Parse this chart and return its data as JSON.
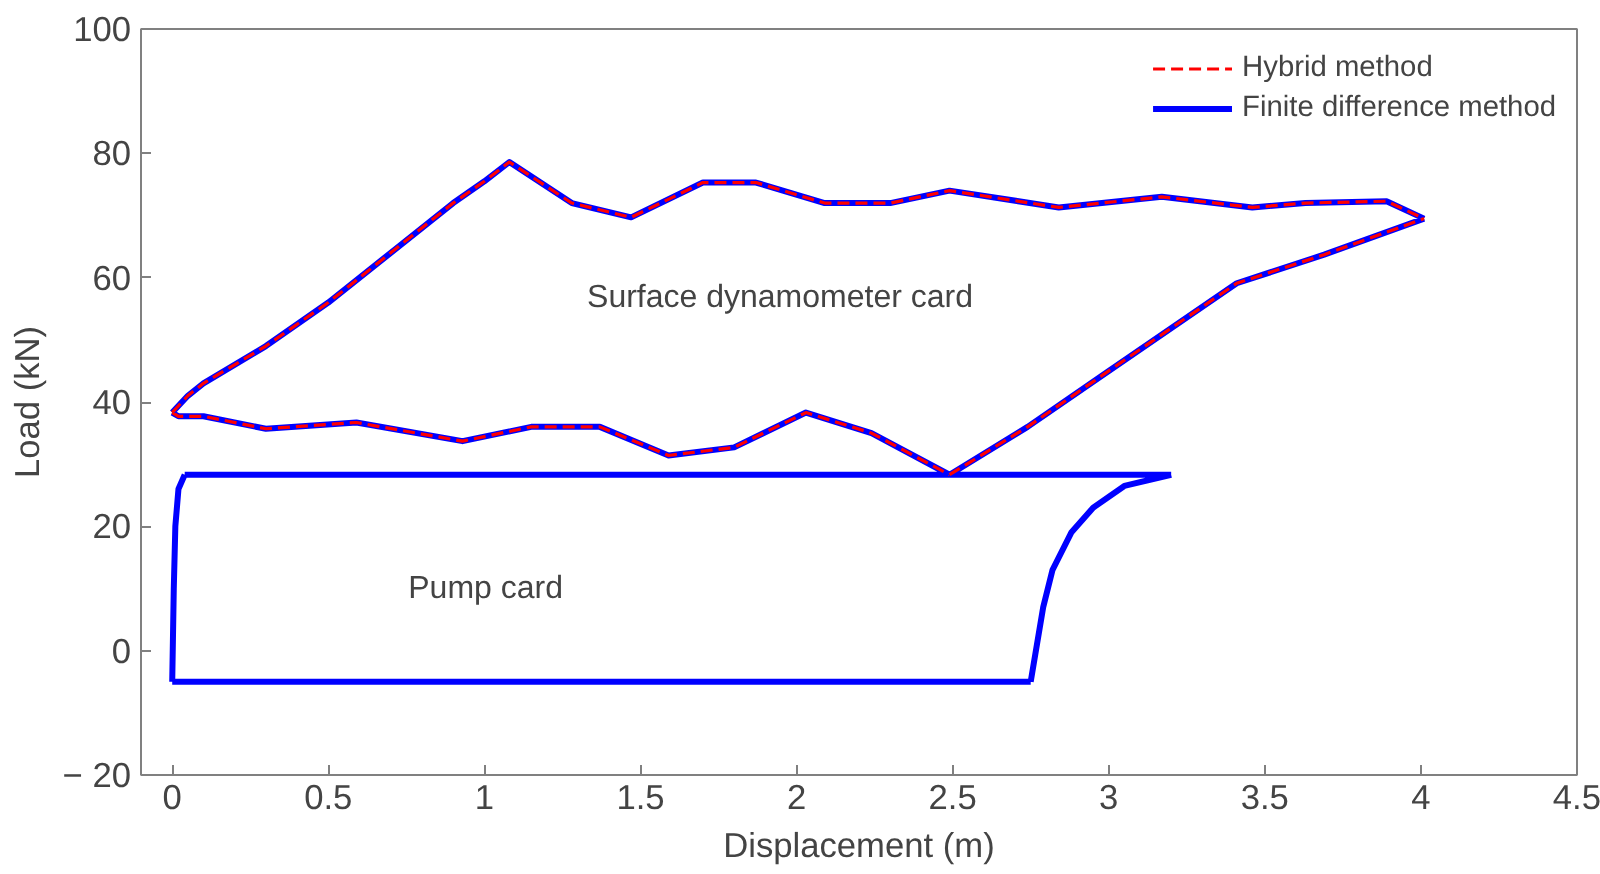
{
  "chart_data": {
    "type": "line",
    "xlabel": "Displacement (m)",
    "ylabel": "Load (kN)",
    "xlim": [
      -0.1,
      4.5
    ],
    "ylim": [
      -20,
      100
    ],
    "xticks": [
      0,
      0.5,
      1,
      1.5,
      2,
      2.5,
      3,
      3.5,
      4,
      4.5
    ],
    "yticks": [
      {
        "value": -20,
        "label": "− 20"
      },
      0,
      20,
      40,
      60,
      80,
      100
    ],
    "grid": false,
    "legend": "top right",
    "series": [
      {
        "name": "Hybrid method",
        "color": "#ff0000",
        "line_style": "dashed",
        "x": [
          0,
          0.05,
          0.1,
          0.3,
          0.5,
          0.7,
          0.9,
          1.0,
          1.08,
          1.28,
          1.47,
          1.7,
          1.87,
          2.09,
          2.3,
          2.49,
          2.84,
          3.17,
          3.46,
          3.63,
          3.89,
          4.01,
          null,
          2.49,
          2.74,
          3.0,
          3.41,
          3.69,
          4.01,
          null,
          0,
          0.02,
          0.1,
          0.3,
          0.59,
          0.93,
          1.15,
          1.37,
          1.59,
          1.8,
          2.03,
          2.24,
          2.49
        ],
        "values": [
          38.3,
          41,
          43,
          49,
          56,
          64,
          72,
          75.5,
          78.6,
          72,
          69.7,
          75.3,
          75.3,
          72,
          72,
          74,
          71.3,
          73,
          71.3,
          72,
          72.3,
          69.5,
          null,
          28.3,
          36,
          45,
          59.1,
          63.7,
          69.5,
          null,
          38.3,
          37.7,
          37.7,
          35.7,
          36.7,
          33.7,
          36,
          36,
          31.4,
          32.7,
          38.3,
          35,
          28.3
        ]
      },
      {
        "name": "Finite difference method",
        "color": "#0000ff",
        "line_style": "solid",
        "x": [
          0,
          0.05,
          0.1,
          0.3,
          0.5,
          0.7,
          0.9,
          1.0,
          1.08,
          1.28,
          1.47,
          1.7,
          1.87,
          2.09,
          2.3,
          2.49,
          2.84,
          3.17,
          3.46,
          3.63,
          3.89,
          4.01,
          null,
          2.49,
          2.74,
          3.0,
          3.41,
          3.69,
          4.01,
          null,
          0,
          0.02,
          0.1,
          0.3,
          0.59,
          0.93,
          1.15,
          1.37,
          1.59,
          1.8,
          2.03,
          2.24,
          2.49,
          null,
          0,
          0.005,
          0.01,
          0.02,
          0.04,
          null,
          0.04,
          3.2,
          null,
          2.75,
          2.77,
          2.79,
          2.82,
          2.88,
          2.95,
          3.05,
          3.2,
          null,
          0,
          2.75
        ],
        "values": [
          38.3,
          41,
          43,
          49,
          56,
          64,
          72,
          75.5,
          78.6,
          72,
          69.7,
          75.3,
          75.3,
          72,
          72,
          74,
          71.3,
          73,
          71.3,
          72,
          72.3,
          69.5,
          null,
          28.3,
          36,
          45,
          59.1,
          63.7,
          69.5,
          null,
          38.3,
          37.7,
          37.7,
          35.7,
          36.7,
          33.7,
          36,
          36,
          31.4,
          32.7,
          38.3,
          35,
          28.3,
          null,
          -5,
          10,
          20,
          26,
          28.3,
          null,
          28.3,
          28.3,
          null,
          -5,
          1,
          7,
          13,
          19,
          23,
          26.5,
          28.3,
          null,
          -5,
          -5
        ]
      }
    ],
    "annotations": [
      "Surface dynamometer card",
      "Pump card"
    ]
  }
}
